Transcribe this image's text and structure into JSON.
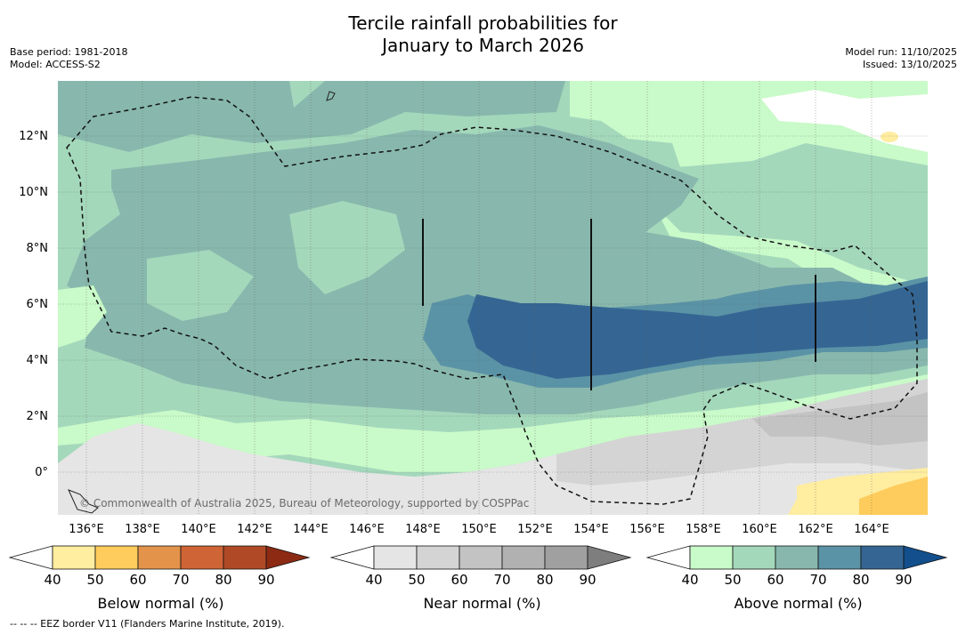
{
  "title": {
    "line1": "Tercile rainfall probabilities for",
    "line2": "January to March 2026"
  },
  "meta_left": {
    "base_period": "Base period: 1981-2018",
    "model": "Model: ACCESS-S2"
  },
  "meta_right": {
    "model_run": "Model run: 11/10/2025",
    "issued": "Issued: 13/10/2025"
  },
  "map": {
    "copyright": "© Commonwealth of Australia 2025, Bureau of Meteorology, supported by COSPPac",
    "lat_labels": [
      "12°N",
      "10°N",
      "8°N",
      "6°N",
      "4°N",
      "2°N",
      "0°"
    ],
    "lon_labels": [
      "136°E",
      "138°E",
      "140°E",
      "142°E",
      "144°E",
      "146°E",
      "148°E",
      "150°E",
      "152°E",
      "154°E",
      "156°E",
      "158°E",
      "160°E",
      "162°E",
      "164°E"
    ]
  },
  "colorbars": {
    "below": {
      "title": "Below normal (%)",
      "ticks": [
        "40",
        "50",
        "60",
        "70",
        "80",
        "90"
      ],
      "colors": [
        "#ffffff",
        "#ffeda0",
        "#fecc5c",
        "#e3944a",
        "#cf6436",
        "#b04a26",
        "#8c2a14"
      ]
    },
    "near": {
      "title": "Near normal (%)",
      "ticks": [
        "40",
        "50",
        "60",
        "70",
        "80",
        "90"
      ],
      "colors": [
        "#ffffff",
        "#e5e5e5",
        "#d4d4d4",
        "#c3c3c3",
        "#b1b1b1",
        "#a0a0a0",
        "#7e7e7e"
      ]
    },
    "above": {
      "title": "Above normal (%)",
      "ticks": [
        "40",
        "50",
        "60",
        "70",
        "80",
        "90"
      ],
      "colors": [
        "#ffffff",
        "#c9fac9",
        "#a4d8bb",
        "#88b8ad",
        "#5b93a6",
        "#356693",
        "#124f8c"
      ]
    }
  },
  "footnote": "--  --  -- EEZ border V11 (Flanders Marine Institute, 2019)."
}
